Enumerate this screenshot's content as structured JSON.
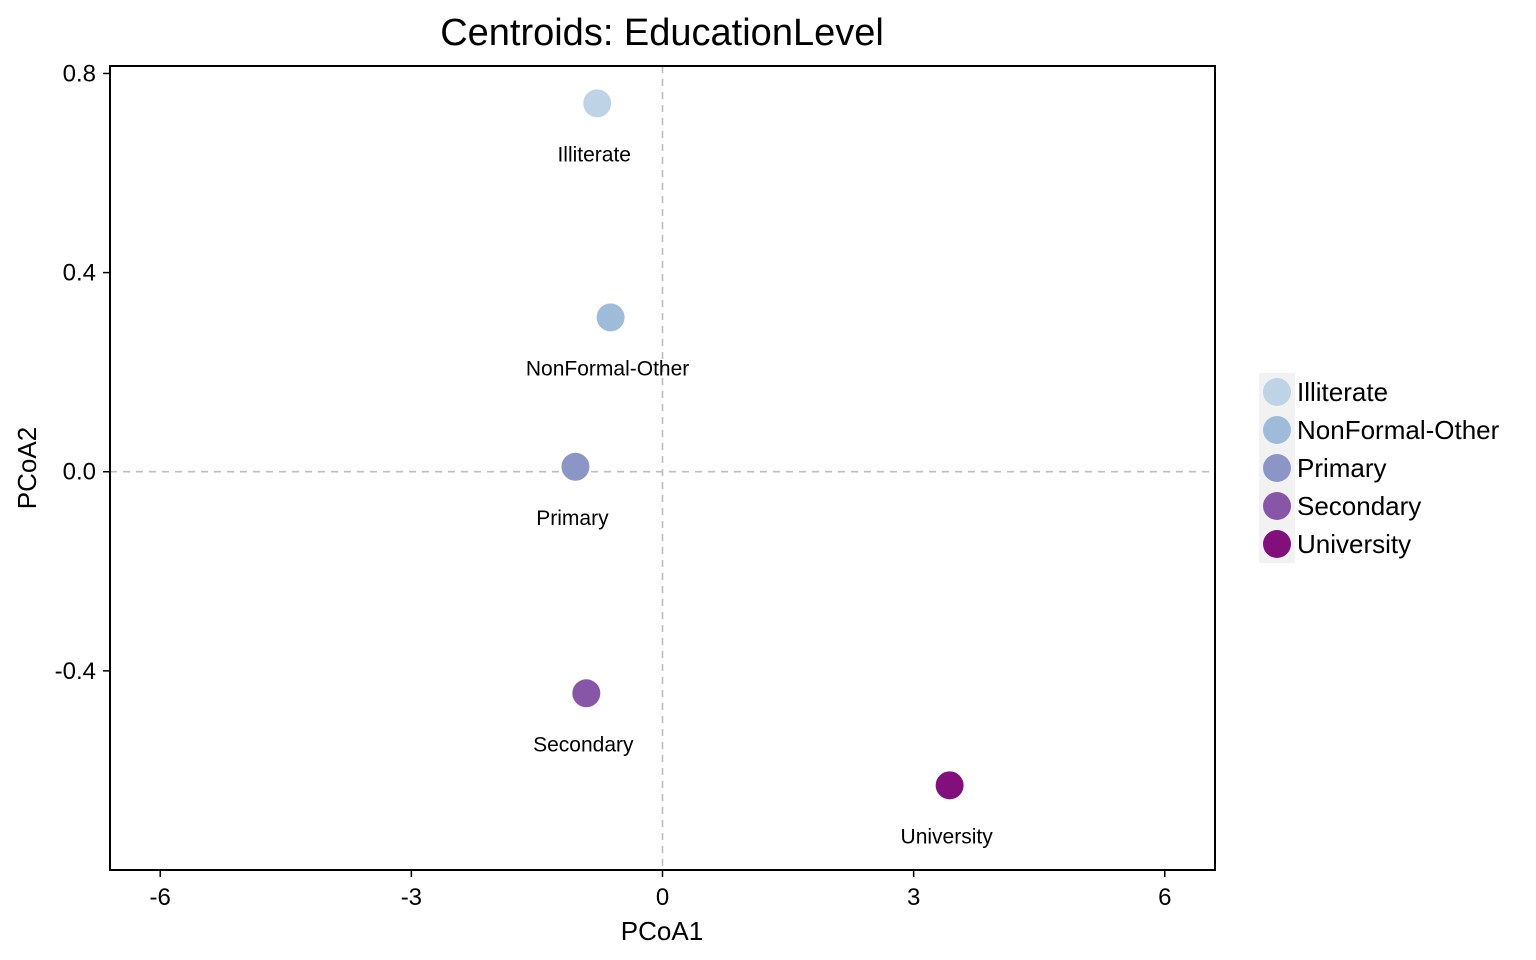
{
  "chart_data": {
    "type": "scatter",
    "title": "Centroids: EducationLevel",
    "xlabel": "PCoA1",
    "ylabel": "PCoA2",
    "xlim": [
      -6.6,
      6.6
    ],
    "ylim": [
      -0.8,
      0.815
    ],
    "xticks": [
      -6,
      -3,
      0,
      3,
      6
    ],
    "xtick_labels": [
      "-6",
      "-3",
      "0",
      "3",
      "6"
    ],
    "yticks": [
      -0.4,
      0.0,
      0.4,
      0.8
    ],
    "ytick_labels": [
      "-0.4",
      "0.0",
      "0.4",
      "0.8"
    ],
    "grid": false,
    "reference_lines": {
      "x": 0,
      "y": 0,
      "style": "dashed",
      "color": "#bdbdbd"
    },
    "legend_position": "right",
    "points": [
      {
        "label": "Illiterate",
        "x": -0.78,
        "y": 0.74,
        "color": "#bfd3e6"
      },
      {
        "label": "NonFormal-Other",
        "x": -0.62,
        "y": 0.31,
        "color": "#9ebcda"
      },
      {
        "label": "Primary",
        "x": -1.04,
        "y": 0.01,
        "color": "#8c96c6"
      },
      {
        "label": "Secondary",
        "x": -0.91,
        "y": -0.445,
        "color": "#8856a7"
      },
      {
        "label": "University",
        "x": 3.43,
        "y": -0.63,
        "color": "#810f7c"
      }
    ],
    "legend": [
      {
        "label": "Illiterate",
        "color": "#bfd3e6"
      },
      {
        "label": "NonFormal-Other",
        "color": "#9ebcda"
      },
      {
        "label": "Primary",
        "color": "#8c96c6"
      },
      {
        "label": "Secondary",
        "color": "#8856a7"
      },
      {
        "label": "University",
        "color": "#810f7c"
      }
    ]
  }
}
